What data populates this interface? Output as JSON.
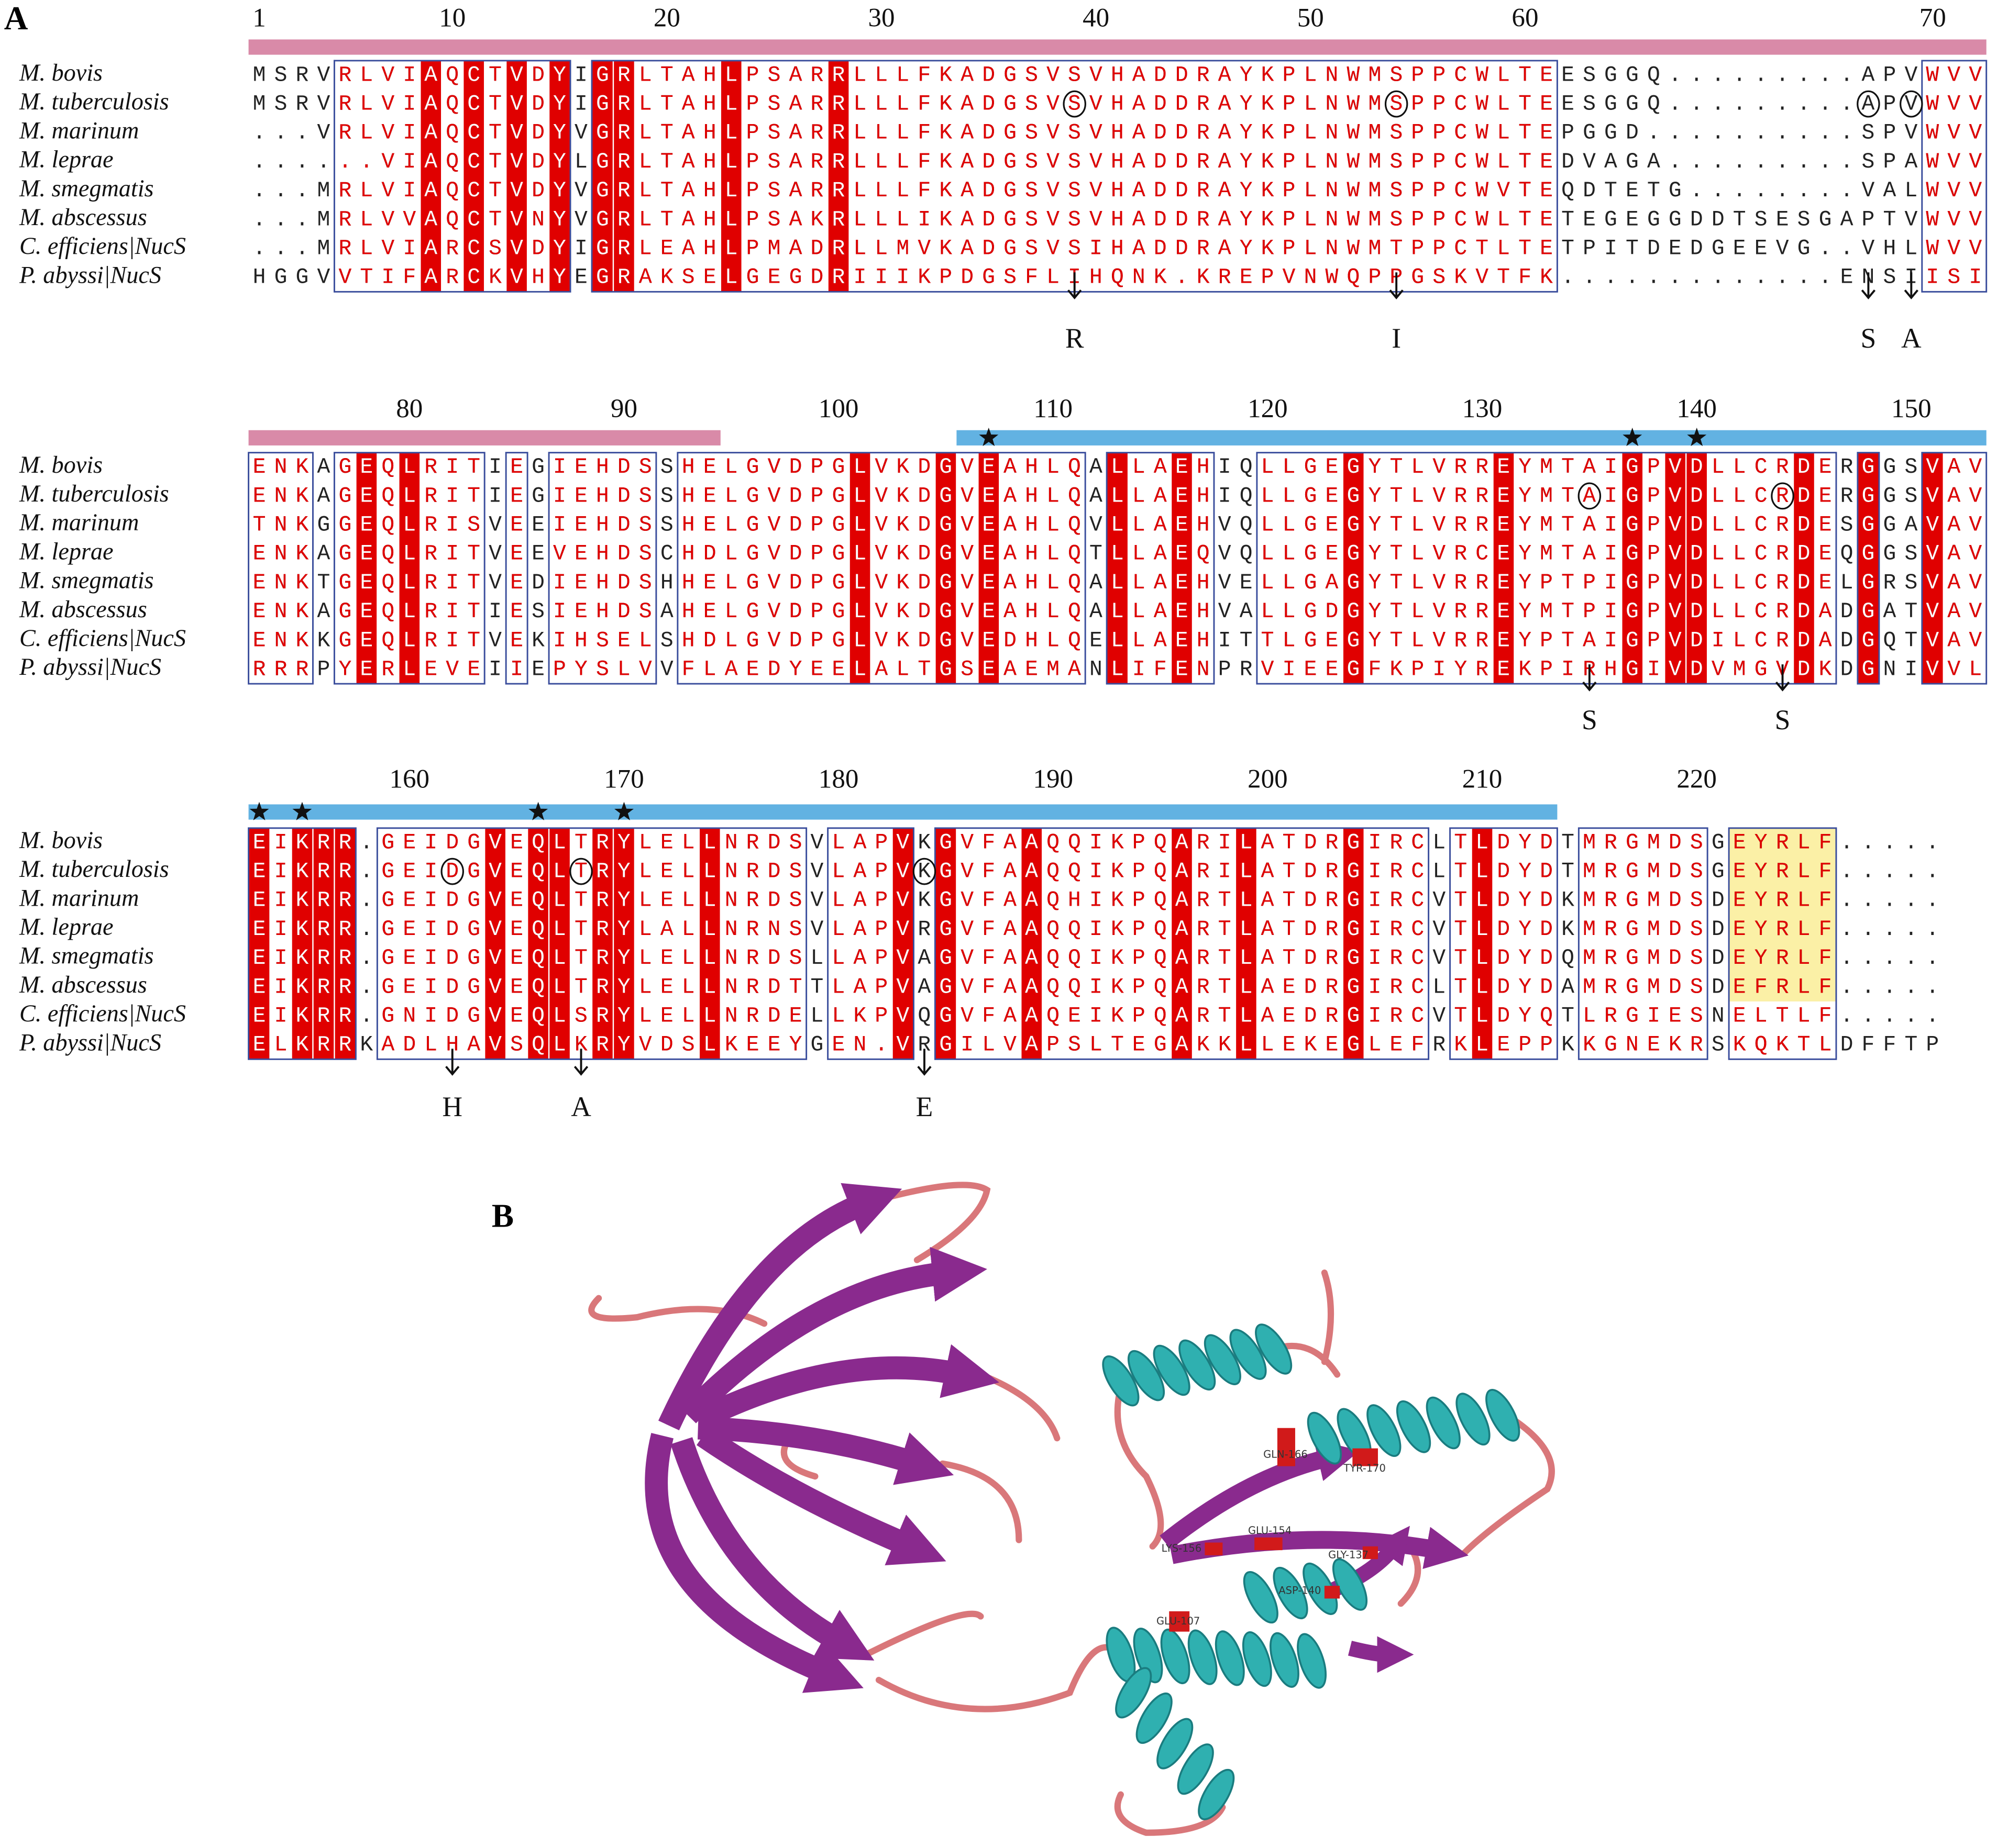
{
  "panel_a": {
    "label": "A",
    "species": [
      "M. bovis",
      "M. tuberculosis",
      "M. marinum",
      "M. leprae",
      "M. smegmatis",
      "M. abscessus",
      "C. efficiens|NucS",
      "P. abyssi|NucS"
    ],
    "blocks": [
      {
        "numbers": [
          1,
          10,
          20,
          30,
          40,
          50,
          60,
          70
        ],
        "sequences": [
          "MSRVRLVIAQCTVDYIGRLTAHLPSARRLLLFKADGSVSVHADDRAYKPLNWMSPPCWLTEESGGQ.........APVWVV",
          "MSRVRLVIAQCTVDYIGRLTAHLPSARRLLLFKADGSVSVHADDRAYKPLNWMSPPCWLTEESGGQ.........APVWVV",
          "...VRLVIAQCTVDYVGRLTAHLPSARRLLLFKADGSVSVHADDRAYKPLNWMSPPCWLTEPGGD..........SPVWVV",
          "......VIAQCTVDYLGRLTAHLPSARRLLLFKADGSVSVHADDRAYKPLNWMSPPCWLTEDVAGA.........SPAWVV",
          "...MRLVIAQCTVDYVGRLTAHLPSARRLLLFKADGSVSVHADDRAYKPLNWMSPPCWVTEQDTETG........VALWVV",
          "...MRLVVAQCTVNYVGRLTAHLPSAKRLLLIKADGSVSVHADDRAYKPLNWMSPPCWLTETEGEGGDDTSESGAPTVWVV",
          "...MRLVIARCSVDYIGRLEAHLPMADRLLMVKADGSVSIHADDRAYKPLNWMTPPCTLTETPITDEDGEEVG..VHLWVV",
          "HGGVVTIFARCKVHYEGRAKSELGEGDRIIIKPDGSFLIHQNK.KREPVNWQPPGSKVTFK.............ENSIISI"
        ],
        "mutations": [
          "R",
          "I",
          "S",
          "A"
        ]
      },
      {
        "numbers": [
          80,
          90,
          100,
          110,
          120,
          130,
          140,
          150
        ],
        "sequences": [
          "ENKAGEQLRITIEGIEHDSSHELGVDPGLVKDGVEAHLQALLAEHIQLLGEGYTLVRREYMTAIGPVDLLCRDERGGSVAV",
          "ENKAGEQLRITIEGIEHDSSHELGVDPGLVKDGVEAHLQALLAEHIQLLGEGYTLVRREYMTAIGPVDLLCRDERGGSVAV",
          "TNKGGEQLRISVEEIEHDSSHELGVDPGLVKDGVEAHLQVLLAEHVQLLGEGYTLVRREYMTAIGPVDLLCRDESGGAVAV",
          "ENKAGEQLRITVEEVEHDSCHDLGVDPGLVKDGVEAHLQTLLAEQVQLLGEGYTLVRCEYMTAIGPVDLLCRDEQGGSVAV",
          "ENKTGEQLRITVEDIEHDSHHELGVDPGLVKDGVEAHLQALLAEHVELLGAGYTLVRREYPTPIGPVDLLCRDELGRSVAV",
          "ENKAGEQLRITIESIEHDSAHELGVDPGLVKDGVEAHLQALLAEHVALLGDGYTLVRREYMTPIGPVDLLCRDADGATVAV",
          "ENKKGEQLRITVEKIHSELSHDLGVDPGLVKDGVEDHLQELLAEHITTLGEGYTLVRREYPTAIGPVDILCRDADGQTVAV",
          "RRRPYERLEVEIIEPYSLVVFLAEDYEELALTGSEAEMANLIFENPRVIEEGFKPIYREKPIRHGIVDVMGVDKDGNIVVL"
        ],
        "mutations": [
          "S",
          "S"
        ]
      },
      {
        "numbers": [
          160,
          170,
          180,
          190,
          200,
          210,
          220
        ],
        "sequences": [
          "EIKRR.GEIDGVEQLTRYLELLNRDSVLAPVKGVFAAQQIKPQARILATDRGIRCLTLDYDTMRGMDSGEYRLF.....",
          "EIKRR.GEIDGVEQLTRYLELLNRDSVLAPVKGVFAAQQIKPQARILATDRGIRCLTLDYDTMRGMDSGEYRLF.....",
          "EIKRR.GEIDGVEQLTRYLELLNRDSVLAPVKGVFAAQHIKPQARTLATDRGIRCVTLDYDKMRGMDSDEYRLF.....",
          "EIKRR.GEIDGVEQLTRYLALLNRNSVLAPVRGVFAAQQIKPQARTLATDRGIRCVTLDYDKMRGMDSDEYRLF.....",
          "EIKRR.GEIDGVEQLTRYLELLNRDSLLAPVAGVFAAQQIKPQARTLATDRGIRCVTLDYDQMRGMDSDEYRLF.....",
          "EIKRR.GEIDGVEQLTRYLELLNRDTTLAPVAGVFAAQQIKPQARTLAEDRGIRCLTLDYDAMRGMDSDEFRLF.....",
          "EIKRR.GNIDGVEQLSRYLELLNRDELLKPVQGVFAAQEIKPQARTLAEDRGIRCVTLDYQTLRGIESNELTLF.....",
          "ELKRRKADLHAVSQLKRYVDSLKEEYGEN.VRGILVAPSLTEGAKKLLEKEGLEFRKLEPPKKGNEKRSKQKTLDFFTP"
        ],
        "mutations": [
          "H",
          "A",
          "E"
        ]
      }
    ]
  },
  "panel_b": {
    "label": "B",
    "residue_labels": [
      "GLN-166",
      "TYR-170",
      "GLU-154",
      "LYS-156",
      "GLY-137",
      "ASP-140",
      "GLU-107"
    ]
  }
}
